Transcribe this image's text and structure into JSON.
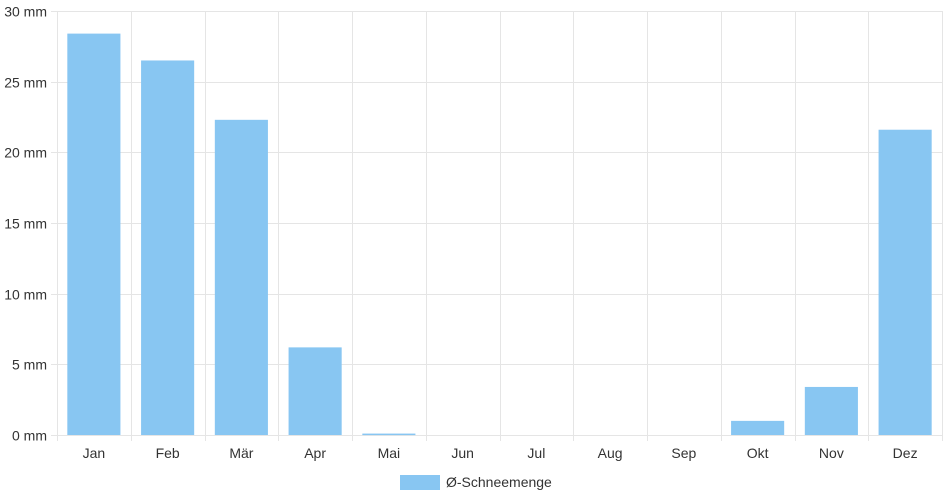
{
  "chart_data": {
    "type": "bar",
    "categories": [
      "Jan",
      "Feb",
      "Mär",
      "Apr",
      "Mai",
      "Jun",
      "Jul",
      "Aug",
      "Sep",
      "Okt",
      "Nov",
      "Dez"
    ],
    "series": [
      {
        "name": "Ø-Schneemenge",
        "values": [
          28.4,
          26.5,
          22.3,
          6.2,
          0.1,
          0,
          0,
          0,
          0,
          1.0,
          3.4,
          21.6
        ],
        "color": "#88c6f2"
      }
    ],
    "ylim": [
      0,
      30
    ],
    "yticks": [
      0,
      5,
      10,
      15,
      20,
      25,
      30
    ],
    "ytick_suffix": " mm",
    "grid": true,
    "legend": "bottom-center",
    "colors": {
      "grid": "#e5e5e5",
      "text": "#333333"
    }
  }
}
